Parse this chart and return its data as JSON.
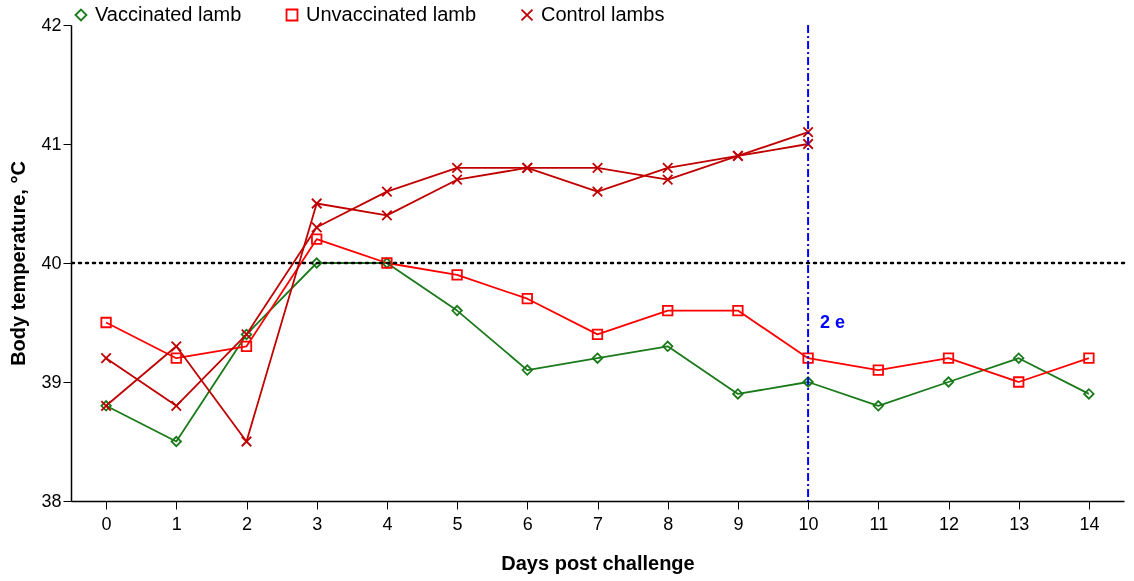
{
  "chart_data": {
    "type": "line",
    "xlabel": "Days post challenge",
    "ylabel": "Body temperature, °C",
    "x": [
      0,
      1,
      2,
      3,
      4,
      5,
      6,
      7,
      8,
      9,
      10,
      11,
      12,
      13,
      14
    ],
    "series": [
      {
        "name": "Vaccinated lamb",
        "color": "#1a7a1a",
        "marker": "diamond",
        "values": [
          38.8,
          38.5,
          39.4,
          40.0,
          40.0,
          39.6,
          39.1,
          39.2,
          39.3,
          38.9,
          39.0,
          38.8,
          39.0,
          39.2,
          38.9
        ]
      },
      {
        "name": "Unvaccinated lamb",
        "color": "#ff0000",
        "marker": "square",
        "values": [
          39.5,
          39.2,
          39.3,
          40.2,
          40.0,
          39.9,
          39.7,
          39.4,
          39.6,
          39.6,
          39.2,
          39.1,
          39.2,
          39.0,
          39.2
        ]
      },
      {
        "name": "Control lambs",
        "color": "#c00000",
        "marker": "cross",
        "x": [
          0,
          1,
          2,
          3,
          4,
          5,
          6,
          7,
          8,
          9,
          10
        ],
        "values": [
          39.2,
          38.8,
          39.4,
          40.3,
          40.6,
          40.8,
          40.8,
          40.8,
          40.7,
          40.9,
          41.0
        ]
      },
      {
        "color": "#c00000",
        "marker": "cross",
        "x": [
          0,
          1,
          2,
          3,
          4,
          5,
          6,
          7,
          8,
          9,
          10
        ],
        "values": [
          38.8,
          39.3,
          38.5,
          40.5,
          40.4,
          40.7,
          40.8,
          40.6,
          40.8,
          40.9,
          41.1
        ]
      }
    ],
    "xlim": [
      -0.5,
      14.5
    ],
    "xticks": [
      0,
      1,
      2,
      3,
      4,
      5,
      6,
      7,
      8,
      9,
      10,
      11,
      12,
      13,
      14
    ],
    "ylim": [
      38,
      42
    ],
    "yticks": [
      38,
      39,
      40,
      41,
      42
    ],
    "ref_lines": [
      {
        "axis": "y",
        "value": 40,
        "color": "#000000",
        "line_style": "dotted"
      },
      {
        "axis": "x",
        "value": 10,
        "color": "#0000ff",
        "line_style": "dashdot"
      }
    ],
    "annotations": [
      {
        "text": "2 e",
        "x": 10,
        "y": 39.5
      }
    ],
    "grid": false,
    "legend": "top"
  }
}
